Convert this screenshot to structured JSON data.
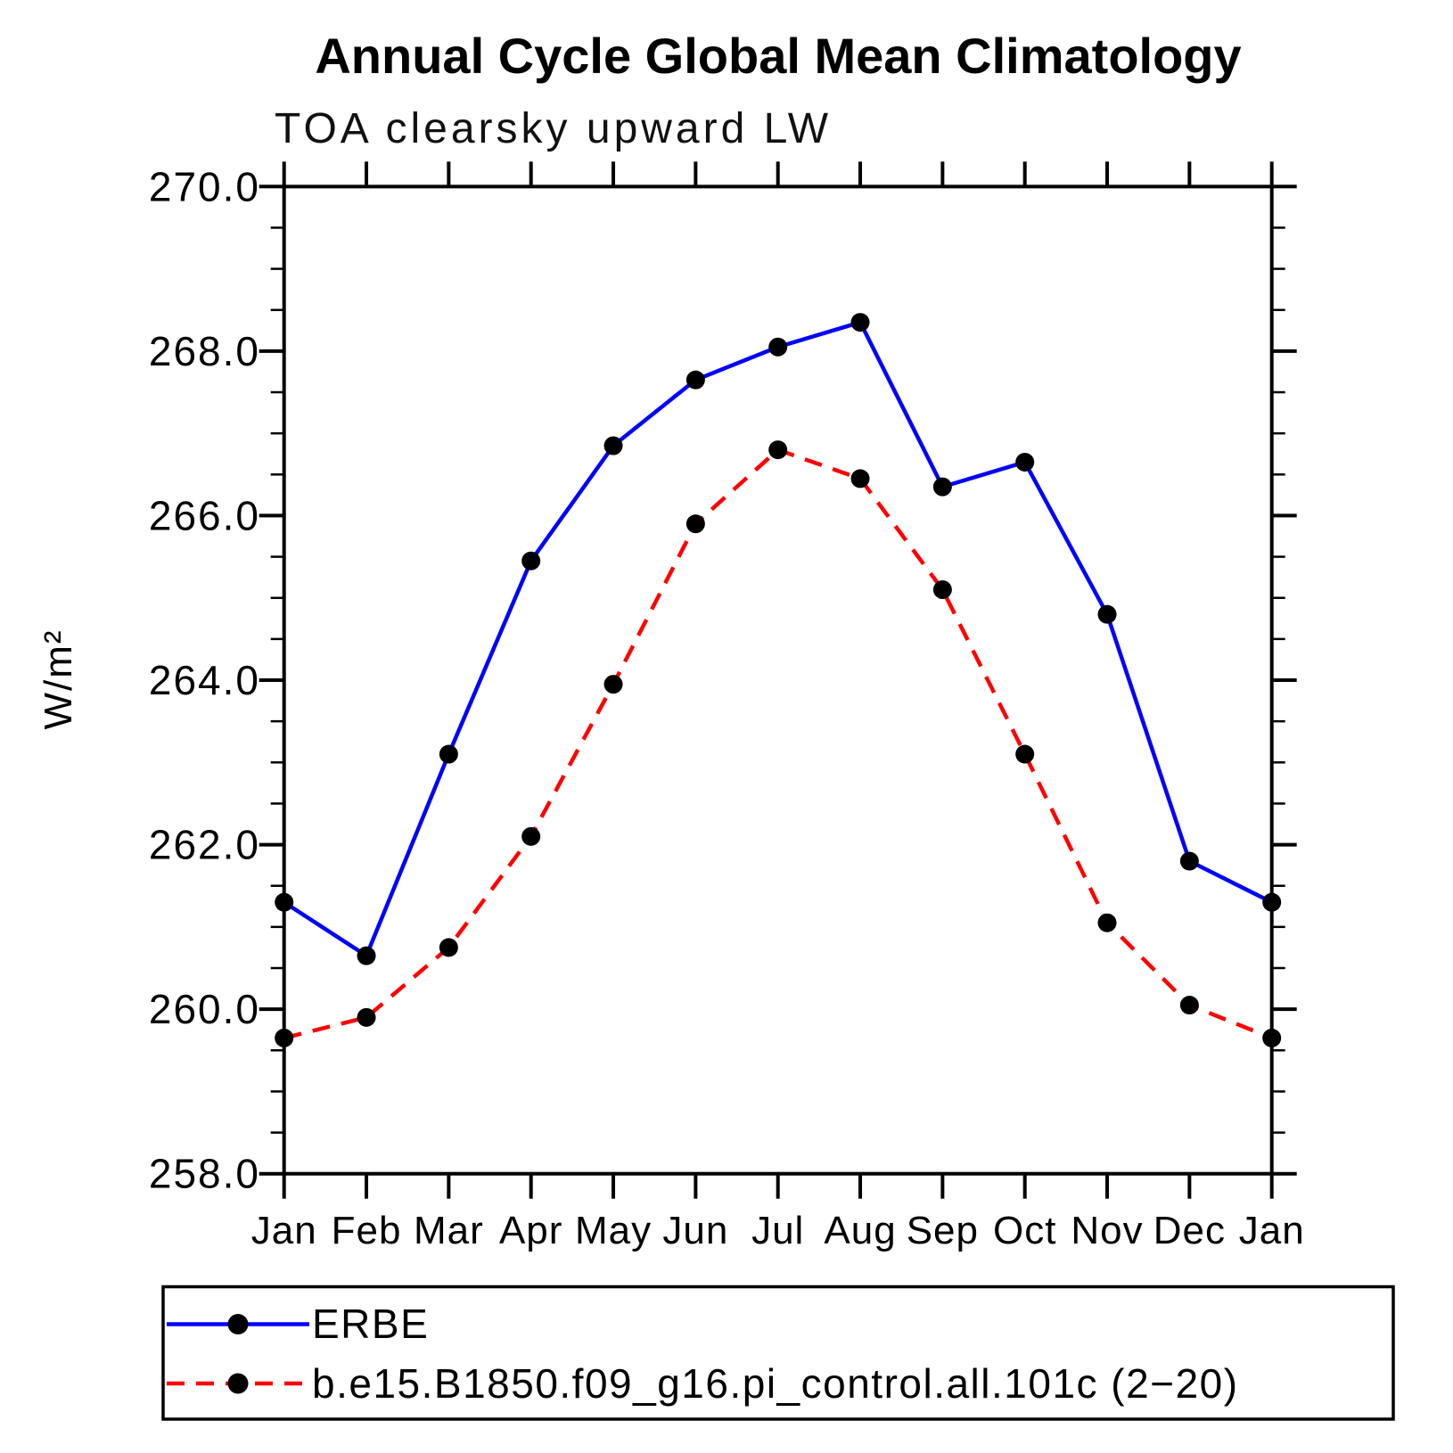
{
  "figure": {
    "background": "#ffffff",
    "frame_color": "#000000",
    "text_color": "#000000"
  },
  "chart_data": {
    "type": "line",
    "title": "Annual Cycle Global Mean Climatology",
    "subtitle": "TOA clearsky upward LW",
    "ylabel": "W/m²",
    "x_categories": [
      "Jan",
      "Feb",
      "Mar",
      "Apr",
      "May",
      "Jun",
      "Jul",
      "Aug",
      "Sep",
      "Oct",
      "Nov",
      "Dec",
      "Jan"
    ],
    "ylim": [
      258.0,
      270.0
    ],
    "y_major_ticks": [
      258.0,
      260.0,
      262.0,
      264.0,
      266.0,
      268.0,
      270.0
    ],
    "y_major_tick_labels": [
      "258.0",
      "260.0",
      "262.0",
      "264.0",
      "266.0",
      "268.0",
      "270.0"
    ],
    "y_minor_step": 0.5,
    "grid": "off",
    "legend_position": "bottom-box",
    "marker_color": "#000000",
    "series": [
      {
        "name": "ERBE",
        "color": "#0000ff",
        "style": "solid",
        "marker": "circle",
        "values": [
          261.3,
          260.65,
          263.1,
          265.45,
          266.85,
          267.65,
          268.05,
          268.35,
          266.35,
          266.65,
          264.8,
          261.8,
          261.3
        ]
      },
      {
        "name": "b.e15.B1850.f09_g16.pi_control.all.101c (2−20)",
        "color": "#ff0000",
        "style": "dashed",
        "marker": "circle",
        "values": [
          259.65,
          259.9,
          260.75,
          262.1,
          263.95,
          265.9,
          266.8,
          266.45,
          265.1,
          263.1,
          261.05,
          260.05,
          259.65
        ]
      }
    ]
  }
}
